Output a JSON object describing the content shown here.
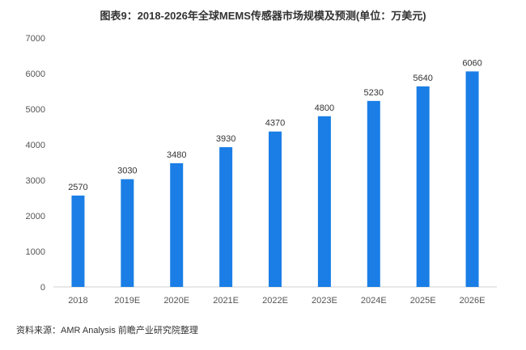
{
  "chart_data": {
    "type": "bar",
    "title": "图表9：2018-2026年全球MEMS传感器市场规模及预测(单位：万美元)",
    "categories": [
      "2018",
      "2019E",
      "2020E",
      "2021E",
      "2022E",
      "2023E",
      "2024E",
      "2025E",
      "2026E"
    ],
    "values": [
      2570,
      3030,
      3480,
      3930,
      4370,
      4800,
      5230,
      5640,
      6060
    ],
    "xlabel": "",
    "ylabel": "",
    "ylim": [
      0,
      7000
    ],
    "yticks": [
      0,
      1000,
      2000,
      3000,
      4000,
      5000,
      6000,
      7000
    ],
    "grid": false,
    "bar_color": "#1a7ee6",
    "data_labels": true
  },
  "source": "资料来源：AMR Analysis 前瞻产业研究院整理"
}
